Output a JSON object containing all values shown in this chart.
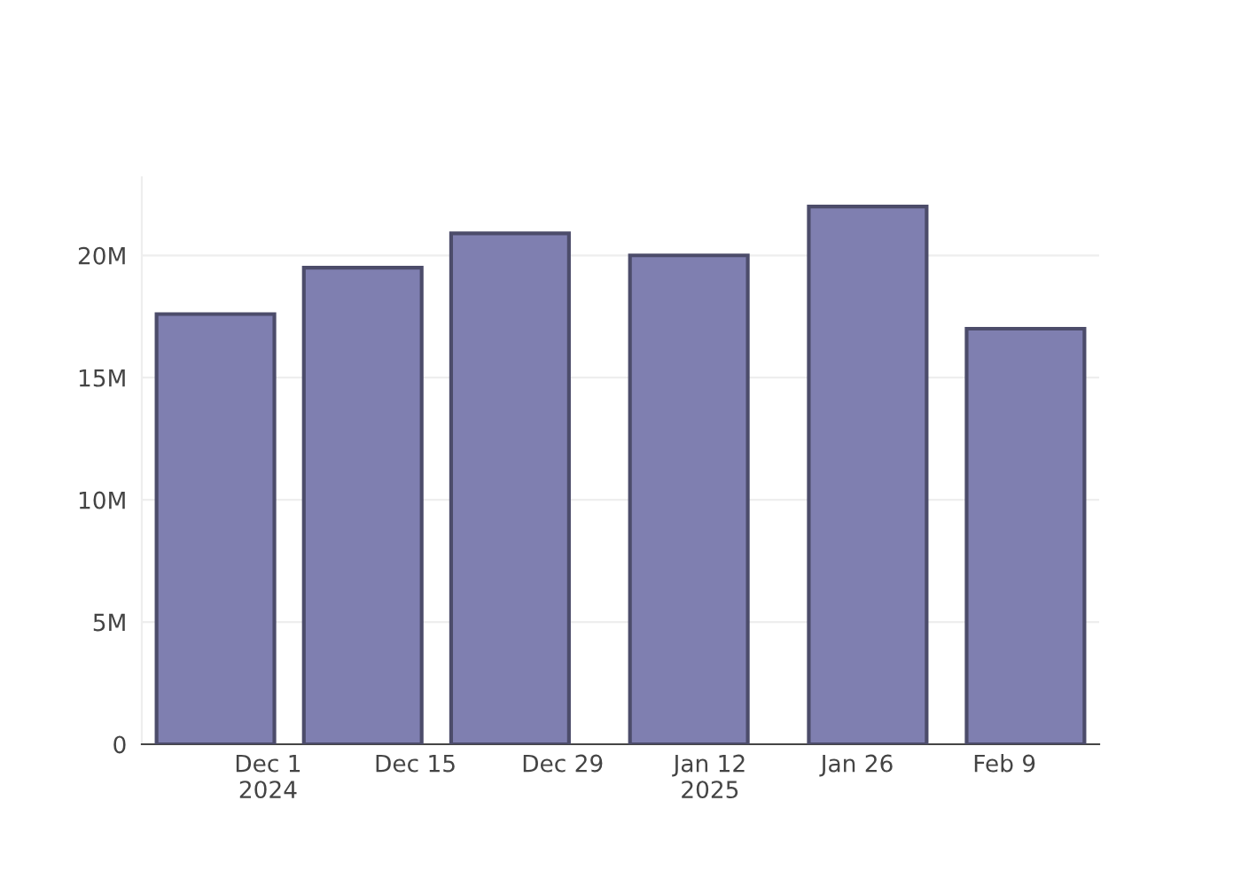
{
  "chart_data": {
    "type": "bar",
    "x": [
      "2024-11-26",
      "2024-12-10",
      "2024-12-24",
      "2025-01-10",
      "2025-01-27",
      "2025-02-11"
    ],
    "values": [
      17600000,
      19500000,
      20900000,
      20000000,
      22000000,
      17000000
    ],
    "color": "#7f7fb0",
    "xlim": [
      "2024-11-19",
      "2025-02-18"
    ],
    "xticks": [
      {
        "value": "2024-12-01",
        "label": "Dec 1\n2024"
      },
      {
        "value": "2024-12-15",
        "label": "Dec 15"
      },
      {
        "value": "2024-12-29",
        "label": "Dec 29"
      },
      {
        "value": "2025-01-12",
        "label": "Jan 12\n2025"
      },
      {
        "value": "2025-01-26",
        "label": "Jan 26"
      },
      {
        "value": "2025-02-09",
        "label": "Feb 9"
      }
    ],
    "yticks": [
      0,
      {
        "value": 5000000,
        "label": "5M"
      },
      {
        "value": 10000000,
        "label": "10M"
      },
      {
        "value": 15000000,
        "label": "15M"
      },
      {
        "value": 20000000,
        "label": "20M"
      }
    ],
    "ylim": [
      0,
      23200000
    ],
    "grid": "y"
  }
}
